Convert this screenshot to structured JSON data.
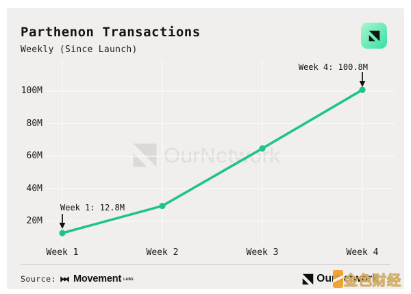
{
  "header": {
    "title": "Parthenon Transactions",
    "subtitle": "Weekly (Since Launch)"
  },
  "chart_data": {
    "type": "line",
    "title": "Parthenon Transactions",
    "subtitle": "Weekly (Since Launch)",
    "categories": [
      "Week 1",
      "Week 2",
      "Week 3",
      "Week 4"
    ],
    "series": [
      {
        "name": "Parthenon Transactions",
        "values": [
          12.8,
          29.5,
          64.8,
          100.8
        ]
      }
    ],
    "values_estimated": [
      false,
      true,
      true,
      false
    ],
    "y_ticks": [
      {
        "label": "20M",
        "value": 20
      },
      {
        "label": "40M",
        "value": 40
      },
      {
        "label": "60M",
        "value": 60
      },
      {
        "label": "80M",
        "value": 80
      },
      {
        "label": "100M",
        "value": 100
      }
    ],
    "ylim": [
      5,
      108
    ],
    "unit": "M",
    "grid": true,
    "legend_position": "none",
    "line_color": "#1fc38c",
    "annotations": [
      {
        "target": "Week 1",
        "value": 12.8,
        "text": "Week 1: 12.8M"
      },
      {
        "target": "Week 4",
        "value": 100.8,
        "text": "Week 4: 100.8M"
      }
    ]
  },
  "watermarks": {
    "center_text": "OurNetwork",
    "corner_text": "金色财经"
  },
  "footer": {
    "source_label": "Source:",
    "source_name": "Movement",
    "source_suffix": "LABS",
    "brand_name": "OurNetwork"
  },
  "colors": {
    "card_bg": "#f0efed",
    "grid": "#fafaf8",
    "line": "#1fc38c",
    "text": "#141414",
    "watermark_gray": "#dfdedb",
    "divider": "#c6c5c2",
    "jinse_orange": "#f0a028",
    "icon_mint_light": "#a9f7cf",
    "icon_mint_dark": "#38dfa5"
  }
}
